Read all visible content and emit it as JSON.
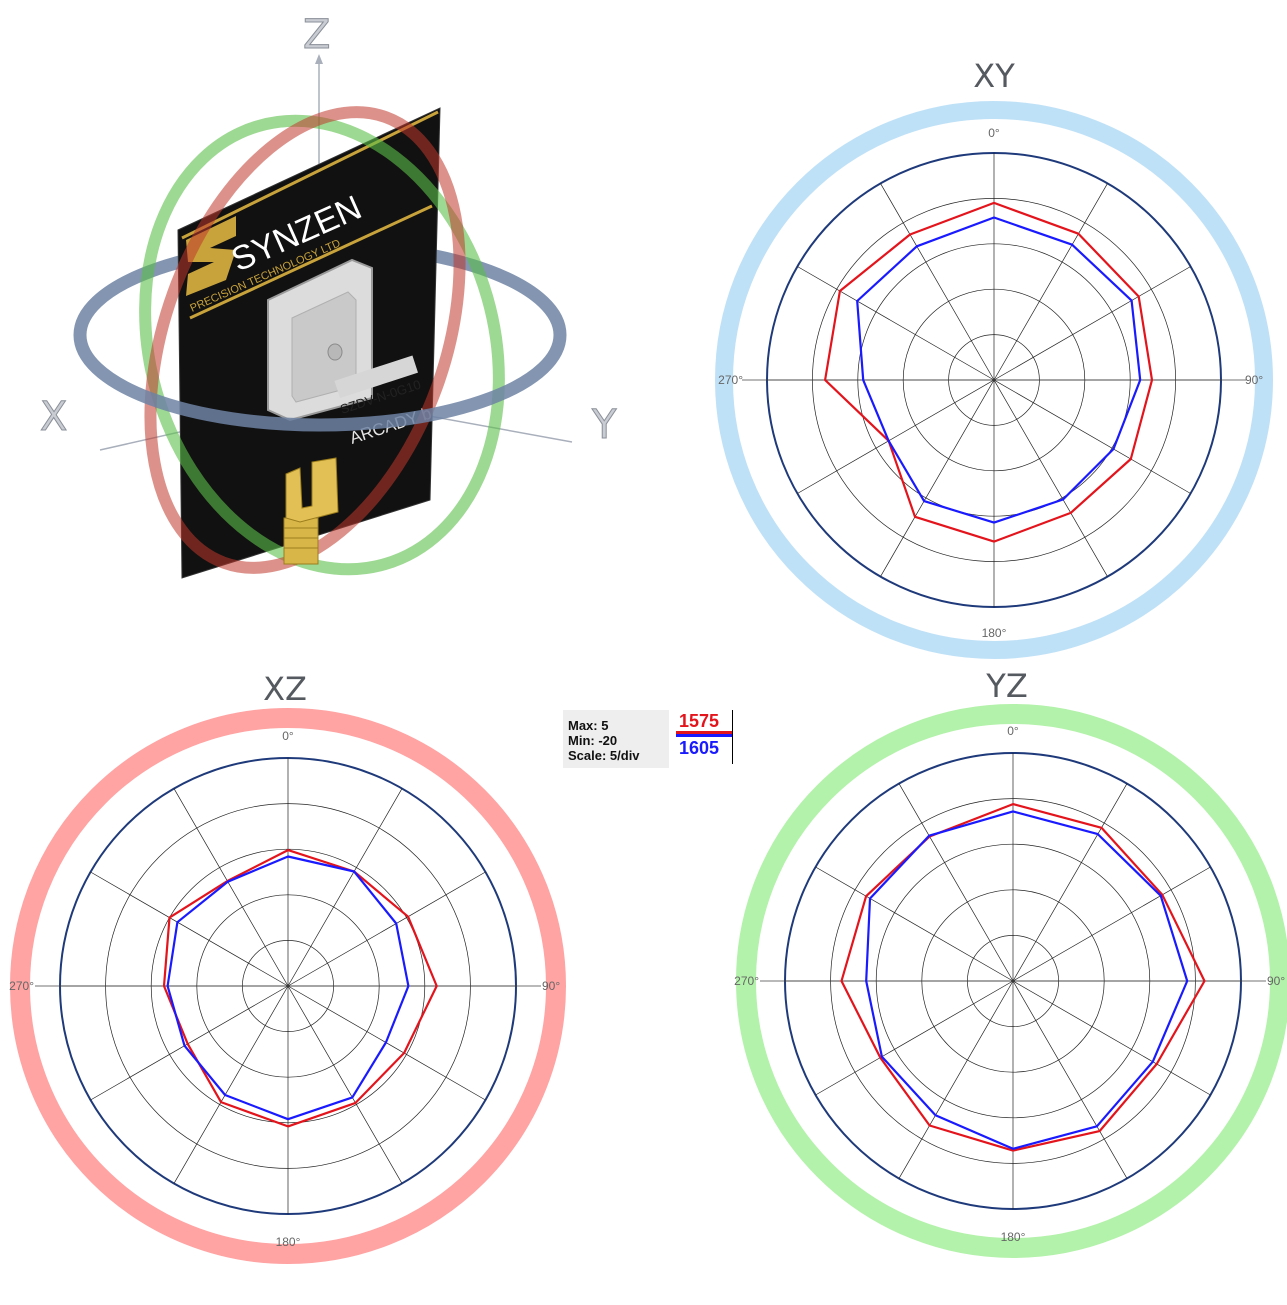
{
  "illustration": {
    "axis_labels": {
      "z": "Z",
      "x": "X",
      "y": "Y"
    },
    "brand": "SYNZEN",
    "brand_sub": "PRECISION TECHNOLOGY LTD",
    "model_label": "SZDV-N-0G10",
    "model_sub": "ARCADY b",
    "colors": {
      "xy_ring": "#6d82a3",
      "xz_ring": "#c0392b",
      "yz_ring": "#5cbf4a",
      "board": "#111111",
      "gold": "#c8a23a"
    }
  },
  "legend": {
    "max": "Max: 5",
    "min": "Min: -20",
    "scale": "Scale: 5/div",
    "series": [
      {
        "name": "1575",
        "color": "#e3141c"
      },
      {
        "name": "1605",
        "color": "#1a1aff"
      }
    ]
  },
  "chart_data": [
    {
      "type": "polar",
      "title": "XY",
      "frame_color": "#bfe1f7",
      "angle_labels": [
        "0°",
        "90°",
        "180°",
        "270°"
      ],
      "rmin": -20,
      "rmax": 5,
      "rings": [
        -15,
        -10,
        -5,
        0,
        5
      ],
      "spokes_deg": 30,
      "angles_deg": [
        0,
        30,
        60,
        90,
        120,
        150,
        180,
        210,
        240,
        270,
        300,
        330
      ],
      "series": [
        {
          "name": "1575",
          "color": "#e3141c",
          "values": [
            -0.5,
            -1.4,
            -1.6,
            -2.6,
            -2.6,
            -3.1,
            -2.2,
            -2.6,
            -6.6,
            -1.4,
            -0.4,
            -1.5
          ]
        },
        {
          "name": "1605",
          "color": "#1a1aff",
          "values": [
            -2.1,
            -2.8,
            -2.5,
            -3.9,
            -4.8,
            -4.8,
            -4.3,
            -4.6,
            -6.6,
            -5.6,
            -2.6,
            -3.0
          ]
        }
      ]
    },
    {
      "type": "polar",
      "title": "XZ",
      "frame_color": "#ffa3a3",
      "angle_labels": [
        "0°",
        "90°",
        "180°",
        "270°"
      ],
      "rmin": -20,
      "rmax": 5,
      "rings": [
        -15,
        -10,
        -5,
        0,
        5
      ],
      "spokes_deg": 30,
      "angles_deg": [
        0,
        30,
        60,
        90,
        120,
        150,
        180,
        210,
        240,
        270,
        300,
        330
      ],
      "series": [
        {
          "name": "1575",
          "color": "#e3141c",
          "values": [
            -5.1,
            -5.5,
            -4.8,
            -3.7,
            -5.3,
            -5.2,
            -4.6,
            -5.3,
            -7.3,
            -6.4,
            -5.0,
            -6.7
          ]
        },
        {
          "name": "1605",
          "color": "#1a1aff",
          "values": [
            -5.8,
            -5.5,
            -6.3,
            -6.8,
            -7.6,
            -5.9,
            -5.4,
            -6.2,
            -6.9,
            -6.8,
            -6.0,
            -6.8
          ]
        }
      ]
    },
    {
      "type": "polar",
      "title": "YZ",
      "frame_color": "#b3f2aa",
      "angle_labels": [
        "0°",
        "90°",
        "180°",
        "270°"
      ],
      "rmin": -20,
      "rmax": 5,
      "rings": [
        -15,
        -10,
        -5,
        0,
        5
      ],
      "spokes_deg": 30,
      "angles_deg": [
        0,
        30,
        60,
        90,
        120,
        150,
        180,
        210,
        240,
        270,
        300,
        330
      ],
      "series": [
        {
          "name": "1575",
          "color": "#e3141c",
          "values": [
            -0.6,
            -0.6,
            -1.1,
            1.0,
            -1.8,
            -1.0,
            -1.4,
            -1.7,
            -3.2,
            -1.2,
            -1.4,
            -1.7
          ]
        },
        {
          "name": "1605",
          "color": "#1a1aff",
          "values": [
            -1.4,
            -1.4,
            -1.3,
            -0.9,
            -2.3,
            -1.6,
            -1.6,
            -3.0,
            -3.4,
            -3.9,
            -1.9,
            -1.6
          ]
        }
      ]
    }
  ]
}
